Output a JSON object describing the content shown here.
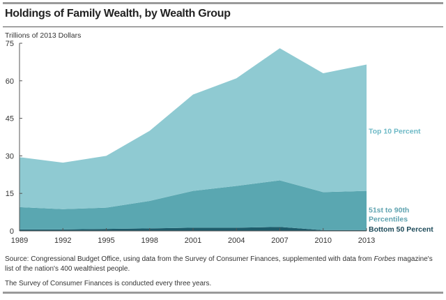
{
  "chart_data": {
    "type": "area",
    "stacked": true,
    "title": "Holdings of Family Wealth, by Wealth Group",
    "ylabel": "Trillions of 2013 Dollars",
    "xlabel": "",
    "x": [
      1989,
      1992,
      1995,
      1998,
      2001,
      2004,
      2007,
      2010,
      2013
    ],
    "ylim": [
      0,
      75
    ],
    "yticks": [
      0,
      15,
      30,
      45,
      60,
      75
    ],
    "grid": false,
    "legend": "direct labels at right",
    "series": [
      {
        "name": "Bottom 50 Percent",
        "color": "#1e5c6b",
        "label_color": "#1d4a59",
        "values": [
          0.6,
          0.6,
          0.8,
          1.0,
          1.3,
          1.3,
          1.6,
          0.3,
          0.3
        ]
      },
      {
        "name": "51st to 90th Percentiles",
        "color": "#5aa7b1",
        "label_color": "#5fa3b0",
        "values": [
          8.9,
          8.1,
          8.5,
          11.0,
          14.7,
          16.7,
          18.6,
          15.2,
          15.7
        ]
      },
      {
        "name": "Top 10 Percent",
        "color": "#8fcad2",
        "label_color": "#6db9c6",
        "values": [
          20.0,
          18.6,
          20.7,
          28.0,
          38.5,
          43.0,
          52.8,
          47.5,
          50.5
        ]
      }
    ]
  },
  "source_prefix": "Source: Congressional Budget Office, using data from the Survey of Consumer Finances, supplemented with data from ",
  "source_italic": "Forbes",
  "source_suffix": " magazine's list of the nation's 400 wealthiest people.",
  "note": "The Survey of Consumer Finances is conducted every three years."
}
